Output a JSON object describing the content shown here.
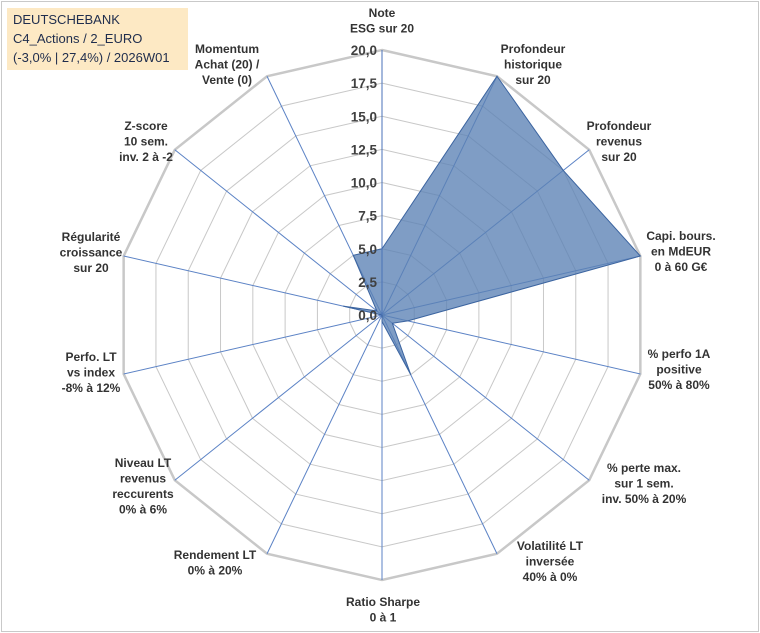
{
  "header": {
    "line1": "DEUTSCHEBANK",
    "line2": "C4_Actions / 2_EURO",
    "line3": "(-3,0% | 27,4%) / 2026W01"
  },
  "chart_data": {
    "type": "radar",
    "r_range": [
      0,
      20
    ],
    "r_ticks": [
      "0,0",
      "2,5",
      "5,0",
      "7,5",
      "10,0",
      "12,5",
      "15,0",
      "17,5",
      "20,0"
    ],
    "grid": true,
    "fill_color": "#5b82b5",
    "fill_opacity": 0.78,
    "line_color": "#3b64a0",
    "grid_color": "#c8c8c8",
    "categories": [
      [
        "Note",
        "ESG sur 20"
      ],
      [
        "Profondeur",
        "historique",
        "sur 20"
      ],
      [
        "Profondeur",
        "revenus",
        "sur 20"
      ],
      [
        "Capi. bours.",
        "en MdEUR",
        "0 à 60 G€"
      ],
      [
        "% perfo 1A",
        "positive",
        "50% à 80%"
      ],
      [
        "% perte max.",
        "sur 1 sem.",
        "inv. 50% à 20%"
      ],
      [
        "Volatilité LT",
        "inversée",
        "40% à 0%"
      ],
      [
        "Ratio Sharpe",
        "0 à 1"
      ],
      [
        "Rendement LT",
        "0% à 20%"
      ],
      [
        "Niveau LT",
        "revenus",
        "reccurents",
        "0% à 6%"
      ],
      [
        "Perfo. LT",
        "vs index",
        "-8% à 12%"
      ],
      [
        "Régularité",
        "croissance",
        "sur 20"
      ],
      [
        "Z-score",
        "10 sem.",
        "inv. 2 à -2"
      ],
      [
        "Momentum",
        "Achat (20) /",
        "Vente (0)"
      ]
    ],
    "series": [
      {
        "values": [
          5.0,
          20.0,
          17.5,
          20.0,
          2.0,
          1.0,
          5.0,
          0.5,
          0.0,
          0.0,
          0.0,
          3.0,
          0.5,
          5.0
        ]
      }
    ]
  }
}
